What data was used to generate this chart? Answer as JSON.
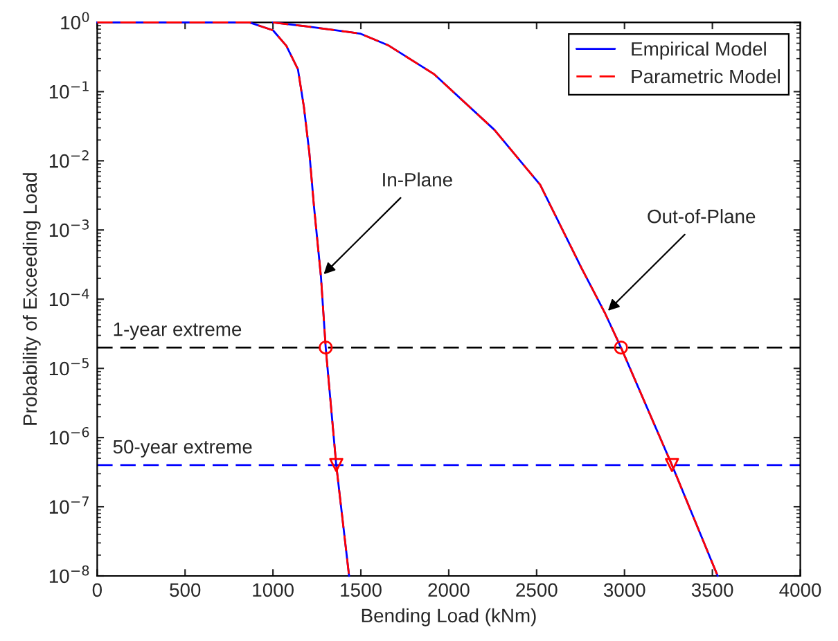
{
  "chart_data": {
    "type": "line",
    "xlabel": "Bending Load (kNm)",
    "ylabel": "Probability of Exceeding Load",
    "log": "y",
    "xlim": [
      0,
      4000
    ],
    "ylim": [
      1e-08,
      1
    ],
    "xticks": [
      0,
      500,
      1000,
      1500,
      2000,
      2500,
      3000,
      3500,
      4000
    ],
    "yticks": [
      {
        "value": 1e-08,
        "label": "10$^{−8}$"
      },
      {
        "value": 1e-07,
        "label": "10$^{−7}$"
      },
      {
        "value": 1e-06,
        "label": "10$^{−6}$"
      },
      {
        "value": 1e-05,
        "label": "10$^{−5}$"
      },
      {
        "value": 0.0001,
        "label": "10$^{−4}$"
      },
      {
        "value": 0.001,
        "label": "10$^{−3}$"
      },
      {
        "value": 0.01,
        "label": "10$^{−2}$"
      },
      {
        "value": 0.1,
        "label": "10$^{−1}$"
      },
      {
        "value": 1,
        "label": "10$^{0}$"
      }
    ],
    "grid": false,
    "legend": "top right",
    "series": [
      {
        "name": "Empirical Model",
        "color": "#0000ff",
        "line_style": "solid",
        "x": [
          0,
          866,
          1000,
          1076,
          1142,
          1176,
          1207,
          1234,
          1273,
          1300,
          1360,
          1433
        ],
        "values": [
          1,
          1,
          0.77,
          0.46,
          0.21,
          0.06,
          0.013,
          0.0021,
          0.00021,
          2e-05,
          4e-07,
          1e-08
        ]
      },
      {
        "name": "Parametric Model",
        "color": "#ff0000",
        "line_style": "dashed",
        "x": [
          0,
          866,
          1000,
          1076,
          1142,
          1176,
          1207,
          1234,
          1273,
          1300,
          1360,
          1433
        ],
        "values": [
          1,
          1,
          0.77,
          0.46,
          0.21,
          0.06,
          0.013,
          0.0021,
          0.00021,
          2e-05,
          4e-07,
          1e-08
        ]
      },
      {
        "color": "#0000ff",
        "line_style": "solid",
        "x": [
          1000,
          1200,
          1496,
          1654,
          1915,
          2260,
          2520,
          2756,
          2890,
          2980,
          3270,
          3530
        ],
        "values": [
          1,
          0.87,
          0.69,
          0.47,
          0.18,
          0.028,
          0.0045,
          0.00028,
          6.2e-05,
          2e-05,
          4e-07,
          1e-08
        ]
      },
      {
        "color": "#ff0000",
        "line_style": "dashed",
        "x": [
          1000,
          1200,
          1496,
          1654,
          1915,
          2260,
          2520,
          2756,
          2890,
          2980,
          3270,
          3530
        ],
        "values": [
          1,
          0.87,
          0.69,
          0.47,
          0.18,
          0.028,
          0.0045,
          0.00028,
          6.2e-05,
          2e-05,
          4e-07,
          1e-08
        ]
      },
      {
        "type": "scatter",
        "color": "#ff0000",
        "marker": "circle",
        "x": [
          1300,
          2980
        ],
        "values": [
          2e-05,
          2e-05
        ]
      },
      {
        "type": "scatter",
        "color": "#ff0000",
        "marker": "triangle",
        "x": [
          1360,
          3270
        ],
        "values": [
          4e-07,
          4e-07
        ]
      }
    ],
    "ref_lines": [
      {
        "axis": "y",
        "value": 2e-05,
        "label": "1-year extreme",
        "color": "#000000",
        "line_style": "dashed"
      },
      {
        "axis": "y",
        "value": 4e-07,
        "label": "50-year extreme",
        "color": "#0000ff",
        "line_style": "dashed"
      }
    ],
    "annotations": [
      {
        "text": "In-Plane",
        "x": 1273,
        "y": 0.00021
      },
      {
        "text": "Out-of-Plane",
        "x": 2890,
        "y": 6.2e-05
      }
    ]
  }
}
